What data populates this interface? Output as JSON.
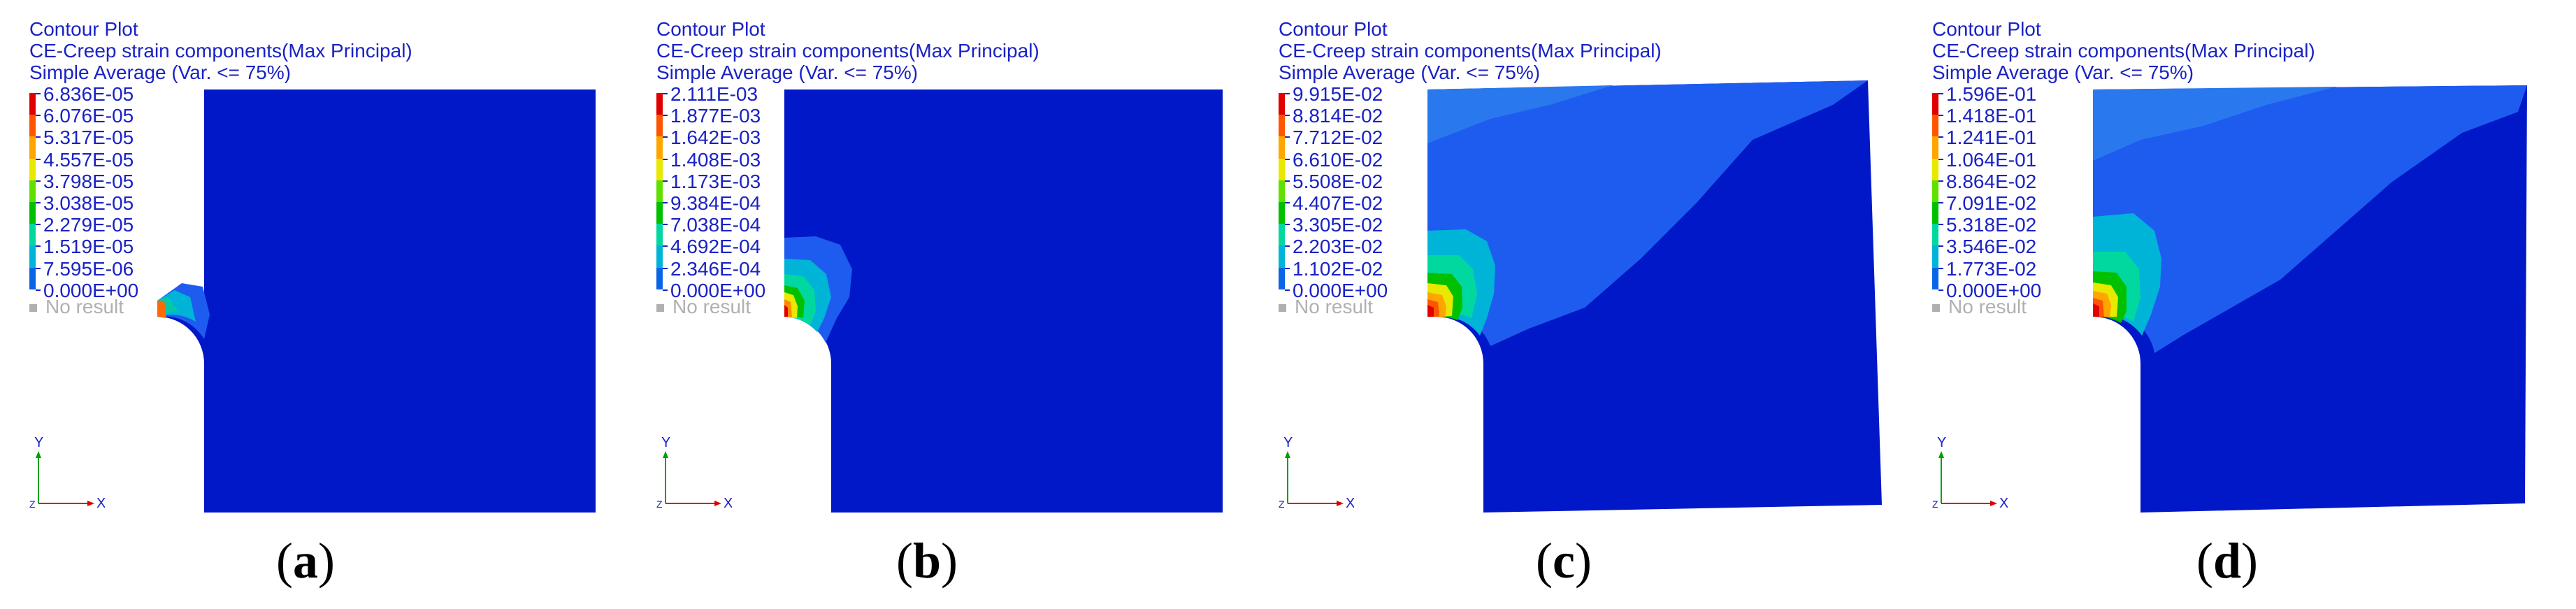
{
  "header": {
    "line1": "Contour Plot",
    "line2": "CE-Creep strain components(Max Principal)",
    "line3": "Simple Average (Var. <= 75%)"
  },
  "no_result": "No result",
  "axis_labels": {
    "x": "X",
    "y": "Y",
    "z": "Z"
  },
  "colors": {
    "background_field": "#0018c8",
    "legend_scale": [
      "#e00000",
      "#ff5500",
      "#ffa500",
      "#e8e800",
      "#60e000",
      "#00c000",
      "#00d8a0",
      "#00b4d8",
      "#0a64e6",
      "#2a32f0",
      "#0010b0"
    ],
    "text": "#1a22c4",
    "no_result": "#b0b0b0"
  },
  "panels": [
    {
      "id": "a",
      "paren_open": "(",
      "letter": "a",
      "paren_close": ")",
      "legend": [
        "6.836E-05",
        "6.076E-05",
        "5.317E-05",
        "4.557E-05",
        "3.798E-05",
        "3.038E-05",
        "2.279E-05",
        "1.519E-05",
        "7.595E-06",
        "0.000E+00"
      ]
    },
    {
      "id": "b",
      "paren_open": "(",
      "letter": "b",
      "paren_close": ")",
      "legend": [
        "2.111E-03",
        "1.877E-03",
        "1.642E-03",
        "1.408E-03",
        "1.173E-03",
        "9.384E-04",
        "7.038E-04",
        "4.692E-04",
        "2.346E-04",
        "0.000E+00"
      ]
    },
    {
      "id": "c",
      "paren_open": "(",
      "letter": "c",
      "paren_close": ")",
      "legend": [
        "9.915E-02",
        "8.814E-02",
        "7.712E-02",
        "6.610E-02",
        "5.508E-02",
        "4.407E-02",
        "3.305E-02",
        "2.203E-02",
        "1.102E-02",
        "0.000E+00"
      ]
    },
    {
      "id": "d",
      "paren_open": "(",
      "letter": "d",
      "paren_close": ")",
      "legend": [
        "1.596E-01",
        "1.418E-01",
        "1.241E-01",
        "1.064E-01",
        "8.864E-02",
        "7.091E-02",
        "5.318E-02",
        "3.546E-02",
        "1.773E-02",
        "0.000E+00"
      ]
    }
  ]
}
